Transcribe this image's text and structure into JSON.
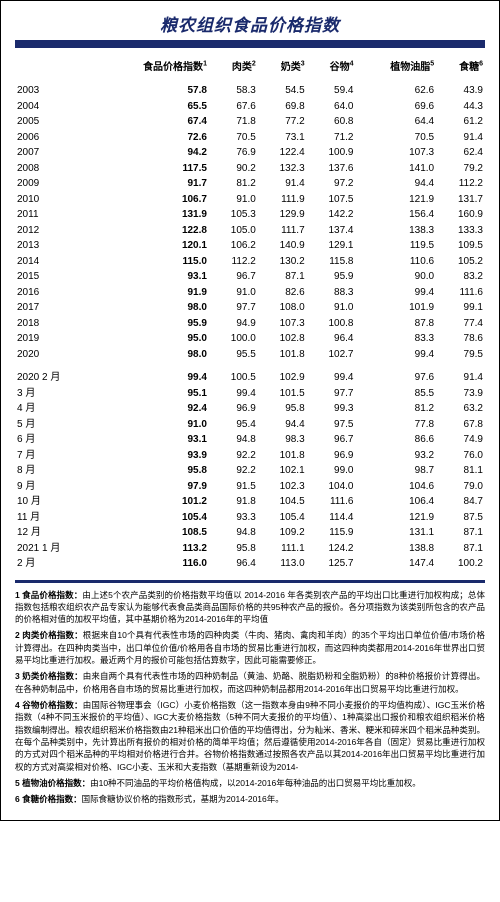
{
  "title": "粮农组织食品价格指数",
  "colors": {
    "accent": "#1a2a6c",
    "text": "#000000",
    "background": "#ffffff"
  },
  "columns": [
    {
      "label": "",
      "sup": ""
    },
    {
      "label": "食品价格指数",
      "sup": "1"
    },
    {
      "label": "肉类",
      "sup": "2"
    },
    {
      "label": "奶类",
      "sup": "3"
    },
    {
      "label": "谷物",
      "sup": "4"
    },
    {
      "label": "植物油脂",
      "sup": "5"
    },
    {
      "label": "食糖",
      "sup": "6"
    }
  ],
  "yearly_rows": [
    {
      "label": "2003",
      "v": [
        "57.8",
        "58.3",
        "54.5",
        "59.4",
        "62.6",
        "43.9"
      ]
    },
    {
      "label": "2004",
      "v": [
        "65.5",
        "67.6",
        "69.8",
        "64.0",
        "69.6",
        "44.3"
      ]
    },
    {
      "label": "2005",
      "v": [
        "67.4",
        "71.8",
        "77.2",
        "60.8",
        "64.4",
        "61.2"
      ]
    },
    {
      "label": "2006",
      "v": [
        "72.6",
        "70.5",
        "73.1",
        "71.2",
        "70.5",
        "91.4"
      ]
    },
    {
      "label": "2007",
      "v": [
        "94.2",
        "76.9",
        "122.4",
        "100.9",
        "107.3",
        "62.4"
      ]
    },
    {
      "label": "2008",
      "v": [
        "117.5",
        "90.2",
        "132.3",
        "137.6",
        "141.0",
        "79.2"
      ]
    },
    {
      "label": "2009",
      "v": [
        "91.7",
        "81.2",
        "91.4",
        "97.2",
        "94.4",
        "112.2"
      ]
    },
    {
      "label": "2010",
      "v": [
        "106.7",
        "91.0",
        "111.9",
        "107.5",
        "121.9",
        "131.7"
      ]
    },
    {
      "label": "2011",
      "v": [
        "131.9",
        "105.3",
        "129.9",
        "142.2",
        "156.4",
        "160.9"
      ]
    },
    {
      "label": "2012",
      "v": [
        "122.8",
        "105.0",
        "111.7",
        "137.4",
        "138.3",
        "133.3"
      ]
    },
    {
      "label": "2013",
      "v": [
        "120.1",
        "106.2",
        "140.9",
        "129.1",
        "119.5",
        "109.5"
      ]
    },
    {
      "label": "2014",
      "v": [
        "115.0",
        "112.2",
        "130.2",
        "115.8",
        "110.6",
        "105.2"
      ]
    },
    {
      "label": "2015",
      "v": [
        "93.1",
        "96.7",
        "87.1",
        "95.9",
        "90.0",
        "83.2"
      ]
    },
    {
      "label": "2016",
      "v": [
        "91.9",
        "91.0",
        "82.6",
        "88.3",
        "99.4",
        "111.6"
      ]
    },
    {
      "label": "2017",
      "v": [
        "98.0",
        "97.7",
        "108.0",
        "91.0",
        "101.9",
        "99.1"
      ]
    },
    {
      "label": "2018",
      "v": [
        "95.9",
        "94.9",
        "107.3",
        "100.8",
        "87.8",
        "77.4"
      ]
    },
    {
      "label": "2019",
      "v": [
        "95.0",
        "100.0",
        "102.8",
        "96.4",
        "83.3",
        "78.6"
      ]
    },
    {
      "label": "2020",
      "v": [
        "98.0",
        "95.5",
        "101.8",
        "102.7",
        "99.4",
        "79.5"
      ]
    }
  ],
  "monthly_rows": [
    {
      "label": "2020  2 月",
      "v": [
        "99.4",
        "100.5",
        "102.9",
        "99.4",
        "97.6",
        "91.4"
      ]
    },
    {
      "label": "3 月",
      "v": [
        "95.1",
        "99.4",
        "101.5",
        "97.7",
        "85.5",
        "73.9"
      ]
    },
    {
      "label": "4 月",
      "v": [
        "92.4",
        "96.9",
        "95.8",
        "99.3",
        "81.2",
        "63.2"
      ]
    },
    {
      "label": "5 月",
      "v": [
        "91.0",
        "95.4",
        "94.4",
        "97.5",
        "77.8",
        "67.8"
      ]
    },
    {
      "label": "6 月",
      "v": [
        "93.1",
        "94.8",
        "98.3",
        "96.7",
        "86.6",
        "74.9"
      ]
    },
    {
      "label": "7 月",
      "v": [
        "93.9",
        "92.2",
        "101.8",
        "96.9",
        "93.2",
        "76.0"
      ]
    },
    {
      "label": "8 月",
      "v": [
        "95.8",
        "92.2",
        "102.1",
        "99.0",
        "98.7",
        "81.1"
      ]
    },
    {
      "label": "9 月",
      "v": [
        "97.9",
        "91.5",
        "102.3",
        "104.0",
        "104.6",
        "79.0"
      ]
    },
    {
      "label": "10 月",
      "v": [
        "101.2",
        "91.8",
        "104.5",
        "111.6",
        "106.4",
        "84.7"
      ]
    },
    {
      "label": "11 月",
      "v": [
        "105.4",
        "93.3",
        "105.4",
        "114.4",
        "121.9",
        "87.5"
      ]
    },
    {
      "label": "12 月",
      "v": [
        "108.5",
        "94.8",
        "109.2",
        "115.9",
        "131.1",
        "87.1"
      ]
    },
    {
      "label": "2021  1 月",
      "v": [
        "113.2",
        "95.8",
        "111.1",
        "124.2",
        "138.8",
        "87.1"
      ]
    },
    {
      "label": "2 月",
      "v": [
        "116.0",
        "96.4",
        "113.0",
        "125.7",
        "147.4",
        "100.2"
      ]
    }
  ],
  "footnotes": [
    {
      "num": "1",
      "head": "食品价格指数：",
      "text": "由上述5个农产品类别的价格指数平均值以 2014-2016 年各类别农产品的平均出口比重进行加权构成；总体指数包括粮农组织农产品专家认为能够代表食品类商品国际价格的共95种农产品的报价。各分项指数为该类别所包含的农产品的价格相对值的加权平均值，其中基期价格为2014-2016年的平均值"
    },
    {
      "num": "2",
      "head": "肉类价格指数：",
      "text": "根据来自10个具有代表性市场的四种肉类（牛肉、猪肉、禽肉和羊肉）的35个平均出口单位价值/市场价格计算得出。在四种肉类当中，出口单位价值/价格用各自市场的贸易比重进行加权，而这四种肉类都用2014-2016年世界出口贸易平均比重进行加权。最近两个月的报价可能包括估算数字，因此可能需要修正。"
    },
    {
      "num": "3",
      "head": "奶类价格指数：",
      "text": "由来自两个具有代表性市场的四种奶制品（黄油、奶酪、脱脂奶粉和全脂奶粉）的8种价格报价计算得出。在各种奶制品中，价格用各自市场的贸易比重进行加权，而这四种奶制品都用2014-2016年出口贸易平均比重进行加权。"
    },
    {
      "num": "4",
      "head": "谷物价格指数：",
      "text": "由国际谷物理事会（IGC）小麦价格指数（这一指数本身由9种不同小麦报价的平均值构成）、IGC玉米价格指数（4种不同玉米报价的平均值）、IGC大麦价格指数（5种不同大麦报价的平均值）、1种高粱出口报价和粮农组织稻米价格指数编制得出。粮农组织稻米价格指数由21种稻米出口价值的平均值得出，分为籼米、香米、粳米和碎米四个稻米品种类别。在每个品种类别中，先计算出所有报价的相对价格的简单平均值；然后遵循使用2014-2016年各自（固定）贸易比重进行加权的方式对四个稻米品种的平均相对价格进行合并。谷物价格指数通过按照各农产品以其2014-2016年出口贸易平均比重进行加权的方式对高粱相对价格、IGC小麦、玉米和大麦指数（基期重新设为2014-"
    },
    {
      "num": "5",
      "head": "植物油价格指数：",
      "text": "由10种不同油品的平均价格值构成，以2014-2016年每种油品的出口贸易平均比重加权。"
    },
    {
      "num": "6",
      "head": "食糖价格指数：",
      "text": "国际食糖协议价格的指数形式，基期为2014-2016年。"
    }
  ]
}
